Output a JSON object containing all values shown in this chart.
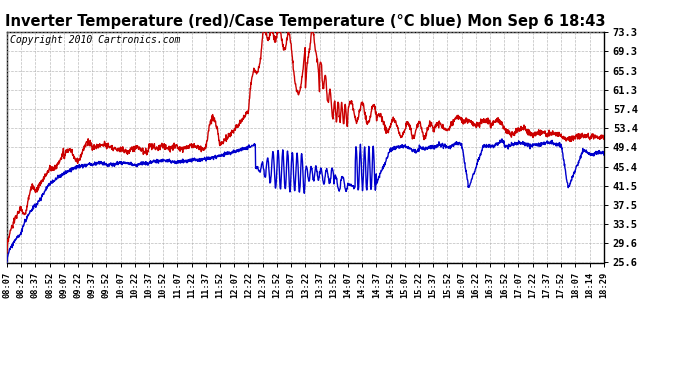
{
  "title": "Inverter Temperature (red)/Case Temperature (°C blue) Mon Sep 6 18:43",
  "copyright": "Copyright 2010 Cartronics.com",
  "yticks": [
    25.6,
    29.6,
    33.5,
    37.5,
    41.5,
    45.4,
    49.4,
    53.4,
    57.4,
    61.3,
    65.3,
    69.3,
    73.3
  ],
  "ymin": 25.6,
  "ymax": 73.3,
  "background_color": "#ffffff",
  "plot_bg_color": "#ffffff",
  "grid_color": "#b0b0b0",
  "red_color": "#cc0000",
  "blue_color": "#0000cc",
  "title_fontsize": 10.5,
  "copyright_fontsize": 7,
  "xtick_labels": [
    "08:07",
    "08:22",
    "08:37",
    "08:52",
    "09:07",
    "09:22",
    "09:37",
    "09:52",
    "10:07",
    "10:22",
    "10:37",
    "10:52",
    "11:07",
    "11:22",
    "11:37",
    "11:52",
    "12:07",
    "12:22",
    "12:37",
    "12:52",
    "13:07",
    "13:22",
    "13:37",
    "13:52",
    "14:07",
    "14:22",
    "14:37",
    "14:52",
    "15:07",
    "15:22",
    "15:37",
    "15:52",
    "16:07",
    "16:22",
    "16:37",
    "16:52",
    "17:07",
    "17:22",
    "17:37",
    "17:52",
    "18:07",
    "18:14",
    "18:29"
  ],
  "n_xticks": 43
}
